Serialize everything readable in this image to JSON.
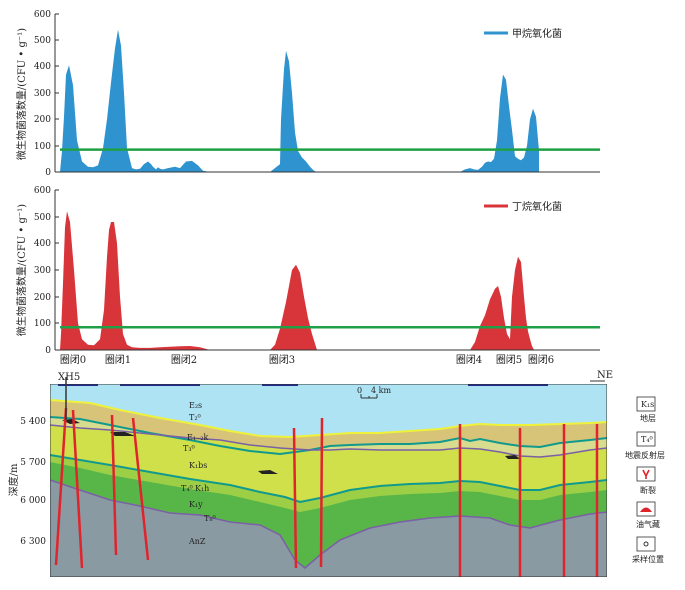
{
  "colors": {
    "methane": "#2e93cf",
    "butane": "#d8353b",
    "threshold": "#1fa046",
    "sky": "#aee3f4",
    "layer_e": "#d8c479",
    "layer_k1": "#d7dc8e",
    "layer_kbs": "#cfe04a",
    "layer_kh": "#9ccf45",
    "layer_ky": "#58b648",
    "layer_anz": "#8a9aa3",
    "fault": "#e0242c",
    "yellow_line": "#eef23a",
    "teal_line": "#109a8e",
    "purple_line": "#7b5fa7"
  },
  "chart_data": [
    {
      "type": "area",
      "ylabel": "微生物菌落数量/(CFU • g⁻¹)",
      "ylim": [
        0,
        600
      ],
      "yticks": [
        "0",
        "100",
        "200",
        "300",
        "400",
        "500",
        "600"
      ],
      "threshold": 85,
      "series": [
        {
          "name": "甲烷氧化菌",
          "x": [
            0,
            2,
            4,
            6,
            9,
            13,
            17,
            22,
            28,
            33,
            38,
            43,
            47,
            51,
            55,
            58,
            61,
            64,
            67,
            72,
            76,
            80,
            84,
            88,
            91,
            93,
            96,
            98,
            100,
            103,
            108,
            115,
            120,
            126,
            132,
            138,
            143,
            150,
            210,
            220,
            221,
            224,
            226,
            229,
            232,
            235,
            238,
            242,
            246,
            250,
            254,
            257,
            400,
            405,
            410,
            414,
            418,
            422,
            425,
            428,
            431,
            434,
            437,
            440,
            443,
            446,
            449,
            452,
            455,
            458,
            461,
            464,
            467,
            470,
            473,
            476,
            479
          ],
          "y": [
            0,
            80,
            210,
            370,
            405,
            330,
            120,
            40,
            20,
            18,
            25,
            90,
            200,
            340,
            470,
            540,
            480,
            300,
            90,
            15,
            10,
            12,
            30,
            40,
            30,
            20,
            10,
            18,
            12,
            10,
            15,
            20,
            15,
            40,
            42,
            25,
            5,
            0,
            0,
            30,
            200,
            390,
            460,
            420,
            300,
            150,
            80,
            55,
            40,
            20,
            5,
            0,
            0,
            10,
            15,
            10,
            8,
            20,
            35,
            40,
            38,
            50,
            120,
            280,
            370,
            350,
            250,
            160,
            60,
            50,
            45,
            55,
            100,
            200,
            240,
            210,
            80
          ]
        }
      ]
    },
    {
      "type": "area",
      "ylabel": "微生物菌落数量/(CFU • g⁻¹)",
      "ylim": [
        0,
        600
      ],
      "yticks": [
        "0",
        "100",
        "200",
        "300",
        "400",
        "500",
        "600"
      ],
      "threshold": 85,
      "series": [
        {
          "name": "丁烷氧化菌",
          "x": [
            0,
            1,
            3,
            5,
            7,
            10,
            14,
            18,
            22,
            28,
            34,
            40,
            44,
            47,
            49,
            51,
            54,
            57,
            60,
            63,
            67,
            72,
            80,
            90,
            100,
            110,
            120,
            130,
            140,
            150,
            210,
            215,
            220,
            226,
            232,
            236,
            240,
            244,
            248,
            252,
            257,
            410,
            415,
            420,
            425,
            430,
            435,
            438,
            441,
            444,
            447,
            450,
            452,
            455,
            458,
            461,
            464,
            466,
            468,
            470,
            472,
            474
          ],
          "y": [
            0,
            60,
            250,
            460,
            520,
            480,
            300,
            100,
            40,
            20,
            18,
            40,
            150,
            350,
            450,
            480,
            480,
            400,
            200,
            60,
            20,
            10,
            8,
            8,
            10,
            12,
            14,
            15,
            10,
            0,
            0,
            20,
            80,
            180,
            300,
            320,
            290,
            200,
            120,
            60,
            0,
            0,
            30,
            90,
            130,
            190,
            230,
            240,
            200,
            120,
            60,
            40,
            200,
            300,
            350,
            330,
            200,
            120,
            70,
            40,
            15,
            0
          ]
        }
      ]
    }
  ],
  "top_panel": {
    "ytick_labels": [
      "600",
      "500",
      "400",
      "300",
      "200",
      "100",
      "0"
    ],
    "ylabel": "微生物菌落数量/(CFU • g⁻¹)",
    "legend": "甲烷氧化菌"
  },
  "mid_panel": {
    "ytick_labels": [
      "600",
      "500",
      "400",
      "300",
      "200",
      "100",
      "0"
    ],
    "ylabel": "微生物菌落数量/(CFU • g⁻¹)",
    "legend": "丁烷氧化菌"
  },
  "traps": [
    "圈闭0",
    "圈闭1",
    "圈闭2",
    "圈闭3",
    "圈闭4",
    "圈闭5",
    "圈闭6"
  ],
  "section": {
    "well": "XH5",
    "direction": "NE",
    "scale_zero": "0",
    "scale_four": "4 km",
    "ylabel": "深度/m",
    "depth_ticks": [
      "5 400",
      "5 700",
      "6 000",
      "6 300"
    ],
    "layer_labels": {
      "e2s": "E₂s",
      "t2": "T₂⁰",
      "e1k": "E₁₋₂k",
      "t3": "T₃⁰",
      "k1bs": "K₁bs",
      "t4": "T₄⁰",
      "k1h": "K₁h",
      "k1y": "K₁y",
      "t8": "T₈⁰",
      "anz": "AnZ"
    }
  },
  "legend_box": {
    "items": [
      {
        "symbol": "K₁s",
        "label": "地层"
      },
      {
        "symbol": "T₄⁰",
        "label": "地震反射层"
      },
      {
        "symbol": "fault",
        "label": "断裂"
      },
      {
        "symbol": "oil",
        "label": "油气藏"
      },
      {
        "symbol": "sample",
        "label": "采样位置"
      }
    ]
  }
}
